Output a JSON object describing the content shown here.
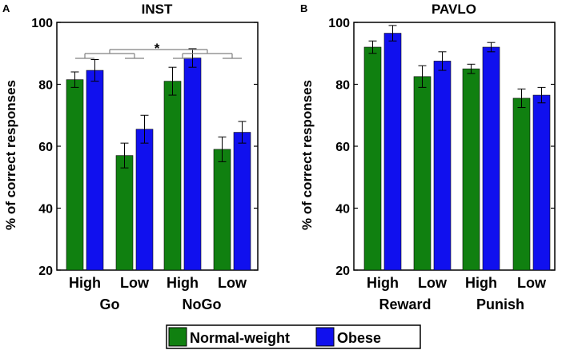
{
  "colors": {
    "normal": "#108010",
    "obese": "#1010ee",
    "axis": "#000000",
    "bracket": "#808080"
  },
  "legend": {
    "normal": "Normal-weight",
    "obese": "Obese"
  },
  "chart_data": [
    {
      "type": "bar",
      "panel_label": "A",
      "title": "INST",
      "ylabel": "% of correct responses",
      "ylim": [
        20,
        100
      ],
      "yticks": [
        "20",
        "40",
        "60",
        "80",
        "100"
      ],
      "categories": [
        "High",
        "Low",
        "High",
        "Low"
      ],
      "groups": [
        "Go",
        "NoGo"
      ],
      "series": [
        {
          "name": "Normal-weight",
          "values": [
            81.5,
            57.0,
            81.0,
            59.0
          ],
          "errors": [
            2.5,
            4.0,
            4.5,
            4.0
          ]
        },
        {
          "name": "Obese",
          "values": [
            84.5,
            65.5,
            88.5,
            64.5
          ],
          "errors": [
            3.5,
            4.5,
            3.0,
            3.5
          ]
        }
      ],
      "annotation": "*"
    },
    {
      "type": "bar",
      "panel_label": "B",
      "title": "PAVLO",
      "ylabel": "% of correct responses",
      "ylim": [
        20,
        100
      ],
      "yticks": [
        "20",
        "40",
        "60",
        "80",
        "100"
      ],
      "categories": [
        "High",
        "Low",
        "High",
        "Low"
      ],
      "groups": [
        "Reward",
        "Punish"
      ],
      "series": [
        {
          "name": "Normal-weight",
          "values": [
            92.0,
            82.5,
            85.0,
            75.5
          ],
          "errors": [
            2.0,
            3.5,
            1.5,
            3.0
          ]
        },
        {
          "name": "Obese",
          "values": [
            96.5,
            87.5,
            92.0,
            76.5
          ],
          "errors": [
            2.5,
            3.0,
            1.5,
            2.5
          ]
        }
      ]
    }
  ]
}
